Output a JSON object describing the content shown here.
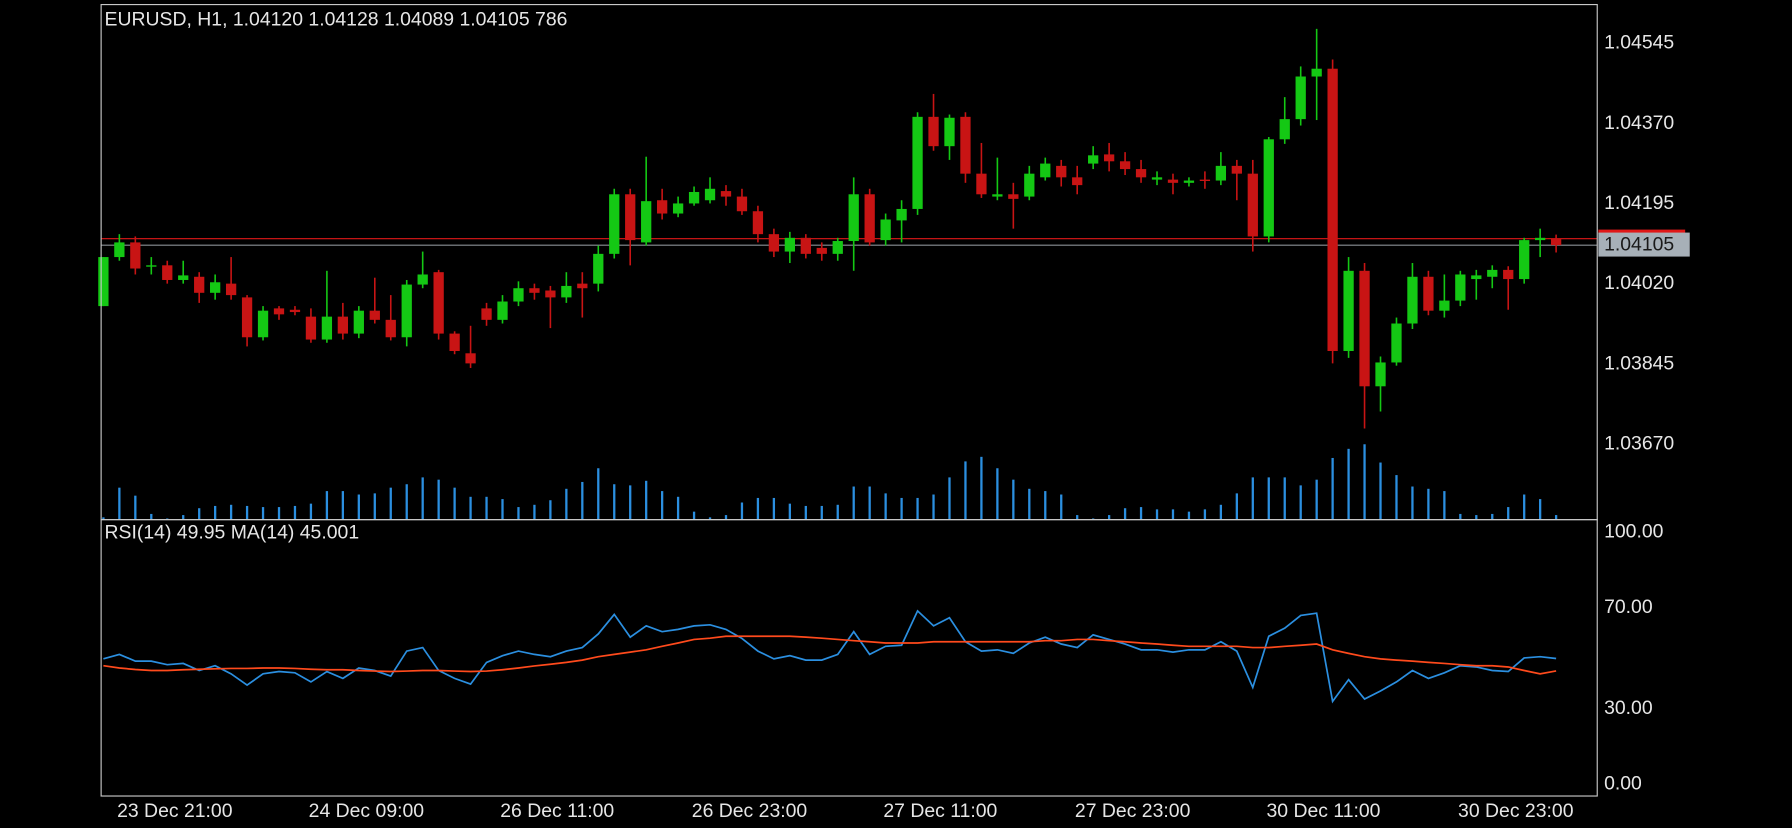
{
  "chart_data": [
    {
      "type": "candlestick",
      "title": "EURUSD, H1, 1.04120 1.04128 1.04089 1.04105 786",
      "categories": [
        null,
        "23 Dec 21:00",
        null,
        null,
        null,
        null,
        null,
        null,
        null,
        null,
        null,
        null,
        null,
        "24 Dec 09:00",
        null,
        null,
        null,
        null,
        null,
        null,
        null,
        null,
        null,
        null,
        null,
        "26 Dec 11:00",
        null,
        null,
        null,
        null,
        null,
        null,
        null,
        null,
        null,
        null,
        null,
        "26 Dec 23:00",
        null,
        null,
        null,
        null,
        null,
        null,
        null,
        null,
        null,
        null,
        null,
        "27 Dec 11:00",
        null,
        null,
        null,
        null,
        null,
        null,
        null,
        null,
        null,
        null,
        null,
        "27 Dec 23:00",
        null,
        null,
        null,
        null,
        null,
        null,
        null,
        null,
        null,
        null,
        null,
        "30 Dec 11:00",
        null,
        null,
        null,
        null,
        null,
        null,
        null,
        null,
        null,
        null,
        null,
        "30 Dec 23:00",
        null,
        null,
        null,
        null,
        null,
        null
      ],
      "open": [
        1.03972,
        1.04079,
        1.04111,
        1.04059,
        1.04061,
        1.04029,
        1.04036,
        1.04001,
        1.04021,
        1.03991,
        1.03904,
        1.03967,
        1.03964,
        1.03949,
        1.03899,
        1.03949,
        1.03912,
        1.03962,
        1.03942,
        1.03904,
        1.04019,
        1.04046,
        1.03912,
        1.03869,
        1.03967,
        1.03942,
        1.03982,
        1.04011,
        1.04006,
        1.03991,
        1.04021,
        1.04021,
        1.04086,
        1.04216,
        1.04111,
        1.04203,
        1.04174,
        1.04196,
        1.04203,
        1.04223,
        1.04211,
        1.04179,
        1.04129,
        1.04091,
        1.04121,
        1.04099,
        1.04086,
        1.04114,
        1.04216,
        1.04116,
        1.04159,
        1.04184,
        1.04385,
        1.04321,
        1.04385,
        1.04261,
        1.04211,
        1.04216,
        1.04211,
        1.04253,
        1.04278,
        1.04253,
        1.04283,
        1.04303,
        1.04288,
        1.04271,
        1.04248,
        1.04248,
        1.04241,
        1.04248,
        1.04246,
        1.04278,
        1.04261,
        1.04124,
        1.04336,
        1.0438,
        1.04473,
        1.0449,
        1.03874,
        1.04049,
        1.03797,
        1.03849,
        1.03934,
        1.04036,
        1.03962,
        1.03984,
        1.04031,
        1.04036,
        1.04051,
        1.04031,
        1.04116,
        1.0412
      ],
      "high": [
        1.04079,
        1.04129,
        1.04124,
        1.04079,
        1.04071,
        1.04071,
        1.04046,
        1.04041,
        1.04079,
        1.03996,
        1.03972,
        1.03972,
        1.03972,
        1.03967,
        1.04049,
        1.03979,
        1.03972,
        1.04034,
        1.03996,
        1.04029,
        1.04091,
        1.04051,
        1.03917,
        1.03929,
        1.03979,
        1.03996,
        1.04026,
        1.04021,
        1.04016,
        1.04046,
        1.04046,
        1.04104,
        1.04228,
        1.04228,
        1.04298,
        1.04228,
        1.04211,
        1.04233,
        1.04253,
        1.04236,
        1.04228,
        1.04191,
        1.04141,
        1.04134,
        1.04129,
        1.04111,
        1.04121,
        1.04253,
        1.04228,
        1.04174,
        1.04203,
        1.04395,
        1.04435,
        1.0439,
        1.04395,
        1.04328,
        1.04296,
        1.04241,
        1.04278,
        1.04296,
        1.04291,
        1.04278,
        1.04321,
        1.04328,
        1.04308,
        1.04291,
        1.04266,
        1.04261,
        1.04253,
        1.04266,
        1.04308,
        1.04291,
        1.04291,
        1.04341,
        1.04428,
        1.04495,
        1.04577,
        1.0451,
        1.04079,
        1.04066,
        1.03862,
        1.03947,
        1.04066,
        1.04049,
        1.04041,
        1.04049,
        1.04051,
        1.04061,
        1.04059,
        1.04121,
        1.04141,
        1.04128
      ],
      "low": [
        1.03972,
        1.04071,
        1.04041,
        1.04041,
        1.04021,
        1.04021,
        1.03979,
        1.03986,
        1.03986,
        1.03884,
        1.03897,
        1.03942,
        1.03952,
        1.03892,
        1.03892,
        1.03899,
        1.03902,
        1.03934,
        1.03897,
        1.03884,
        1.04011,
        1.03899,
        1.03867,
        1.03837,
        1.03929,
        1.03934,
        1.03972,
        1.03986,
        1.03924,
        1.03979,
        1.03947,
        1.04004,
        1.04076,
        1.04061,
        1.04104,
        1.04161,
        1.04166,
        1.04191,
        1.04196,
        1.04191,
        1.04171,
        1.04111,
        1.04079,
        1.04066,
        1.04076,
        1.04071,
        1.04071,
        1.04049,
        1.04104,
        1.04104,
        1.04111,
        1.04171,
        1.04311,
        1.04291,
        1.04241,
        1.04208,
        1.04203,
        1.04141,
        1.04203,
        1.04246,
        1.04233,
        1.04216,
        1.04271,
        1.04266,
        1.04258,
        1.04241,
        1.04236,
        1.04216,
        1.04233,
        1.04228,
        1.04236,
        1.04203,
        1.04091,
        1.04111,
        1.04326,
        1.04366,
        1.04378,
        1.03847,
        1.03859,
        1.03705,
        1.03742,
        1.03842,
        1.03922,
        1.03952,
        1.03947,
        1.03972,
        1.03986,
        1.04011,
        1.03964,
        1.04021,
        1.04079,
        1.04089
      ],
      "close": [
        1.04079,
        1.04111,
        1.04054,
        1.04061,
        1.04029,
        1.04039,
        1.04001,
        1.04024,
        1.03996,
        1.03904,
        1.03962,
        1.03954,
        1.03959,
        1.03899,
        1.03949,
        1.03912,
        1.03962,
        1.03942,
        1.03904,
        1.04019,
        1.04041,
        1.03912,
        1.03874,
        1.03847,
        1.03942,
        1.03982,
        1.04011,
        1.04001,
        1.03991,
        1.04016,
        1.04011,
        1.04086,
        1.04216,
        1.04116,
        1.04201,
        1.04174,
        1.04196,
        1.04221,
        1.04228,
        1.04211,
        1.04179,
        1.04129,
        1.04091,
        1.04121,
        1.04086,
        1.04086,
        1.04114,
        1.04216,
        1.04111,
        1.04161,
        1.04184,
        1.04385,
        1.04321,
        1.04383,
        1.04261,
        1.04216,
        1.04216,
        1.04206,
        1.04261,
        1.04283,
        1.04253,
        1.04236,
        1.04301,
        1.04288,
        1.04271,
        1.04253,
        1.04253,
        1.04241,
        1.04246,
        1.04246,
        1.04278,
        1.04261,
        1.04124,
        1.04336,
        1.0438,
        1.04473,
        1.0449,
        1.03874,
        1.04049,
        1.03797,
        1.03849,
        1.03934,
        1.04036,
        1.03962,
        1.03984,
        1.04041,
        1.04039,
        1.04051,
        1.04031,
        1.04116,
        1.04121,
        1.04105
      ],
      "volume": [
        392,
        5488,
        4116,
        980,
        196,
        784,
        1960,
        2352,
        2548,
        2352,
        2156,
        2156,
        2352,
        2744,
        4900,
        4900,
        4312,
        4508,
        5488,
        6076,
        7252,
        6860,
        5488,
        3920,
        3920,
        3528,
        2156,
        2548,
        3332,
        5292,
        6468,
        8820,
        6076,
        5880,
        6664,
        4900,
        3920,
        1372,
        392,
        784,
        2940,
        3724,
        3724,
        2744,
        2352,
        2352,
        2548,
        5684,
        5684,
        4508,
        3724,
        3724,
        4312,
        7252,
        9996,
        10780,
        8820,
        6860,
        5292,
        4900,
        4312,
        784,
        196,
        784,
        1960,
        2156,
        1764,
        1764,
        1372,
        1764,
        2548,
        4508,
        7252,
        7252,
        7252,
        5880,
        6860,
        10584,
        12152,
        12936,
        9800,
        7644,
        5684,
        5292,
        4900,
        980,
        784,
        980,
        2156,
        4312,
        3528,
        786
      ],
      "up_color": "#14c814",
      "down_color": "#c81414",
      "volume_color": "#2b8fe0",
      "bid": 1.04105,
      "ask": 1.04119,
      "ask_color": "#e01818",
      "bid_color": "#8a8f96",
      "ylim": [
        1.03506,
        1.0463
      ],
      "yticks": [
        1.04545,
        {
          "value": 1.0437,
          "label": "1.04370"
        },
        1.04195,
        {
          "value": 1.0402,
          "label": "1.04020"
        },
        1.03845,
        {
          "value": 1.0367,
          "label": "1.03670"
        }
      ],
      "grid": true
    },
    {
      "type": "line",
      "title": "RSI(14) 49.95 MA(14) 45.001",
      "series": [
        {
          "color": "#2b8fe0",
          "values": [
            49.8,
            51.6,
            48.9,
            48.9,
            47.5,
            48.0,
            45.2,
            47.1,
            43.9,
            39.4,
            43.9,
            44.8,
            44.3,
            40.7,
            44.8,
            42.1,
            46.2,
            45.2,
            43.0,
            52.9,
            54.3,
            45.2,
            42.1,
            39.8,
            48.4,
            51.1,
            52.9,
            51.6,
            50.7,
            52.9,
            54.3,
            59.7,
            67.4,
            58.4,
            62.9,
            60.6,
            61.5,
            62.9,
            63.3,
            61.5,
            57.9,
            52.9,
            49.8,
            51.1,
            49.3,
            49.3,
            51.6,
            60.6,
            51.6,
            54.8,
            55.2,
            68.8,
            62.9,
            66.1,
            56.6,
            52.9,
            53.4,
            52.0,
            56.1,
            58.4,
            55.7,
            54.3,
            59.3,
            57.5,
            55.7,
            53.4,
            53.4,
            52.5,
            53.4,
            53.4,
            56.6,
            52.9,
            38.5,
            58.8,
            62.0,
            67.0,
            67.9,
            33.0,
            41.6,
            33.9,
            37.1,
            40.7,
            45.2,
            42.1,
            44.3,
            47.1,
            46.6,
            45.2,
            44.8,
            50.2,
            50.7,
            49.95
          ]
        },
        {
          "color": "#ff4a1c",
          "values": [
            47.1,
            46.2,
            45.6,
            45.2,
            45.2,
            45.5,
            45.7,
            45.9,
            46.0,
            46.0,
            46.2,
            46.2,
            46.0,
            45.7,
            45.5,
            45.5,
            45.2,
            45.0,
            44.8,
            45.0,
            45.2,
            45.2,
            45.0,
            44.8,
            45.0,
            45.5,
            46.2,
            47.0,
            47.7,
            48.4,
            49.3,
            50.7,
            51.6,
            52.5,
            53.4,
            54.8,
            56.1,
            57.5,
            58.0,
            58.8,
            58.8,
            58.8,
            58.8,
            58.8,
            58.4,
            58.0,
            57.5,
            57.0,
            56.6,
            56.1,
            56.1,
            56.1,
            56.6,
            56.6,
            56.6,
            56.6,
            56.6,
            56.6,
            56.6,
            57.0,
            57.0,
            57.5,
            57.5,
            57.0,
            56.6,
            56.1,
            55.7,
            55.2,
            54.8,
            54.8,
            54.8,
            54.8,
            54.3,
            54.3,
            54.8,
            55.2,
            55.7,
            53.4,
            52.0,
            50.7,
            49.8,
            49.3,
            48.9,
            48.4,
            48.0,
            47.5,
            47.1,
            47.1,
            46.6,
            45.2,
            43.9,
            45.001
          ]
        }
      ],
      "ylim": [
        -4.52,
        104.52
      ],
      "yticks": [
        {
          "value": 100,
          "label": "100.00"
        },
        {
          "value": 70,
          "label": "70.00"
        },
        {
          "value": 30,
          "label": "30.00"
        },
        {
          "value": 0,
          "label": "0.00"
        }
      ],
      "levels": [
        30,
        70
      ]
    }
  ]
}
